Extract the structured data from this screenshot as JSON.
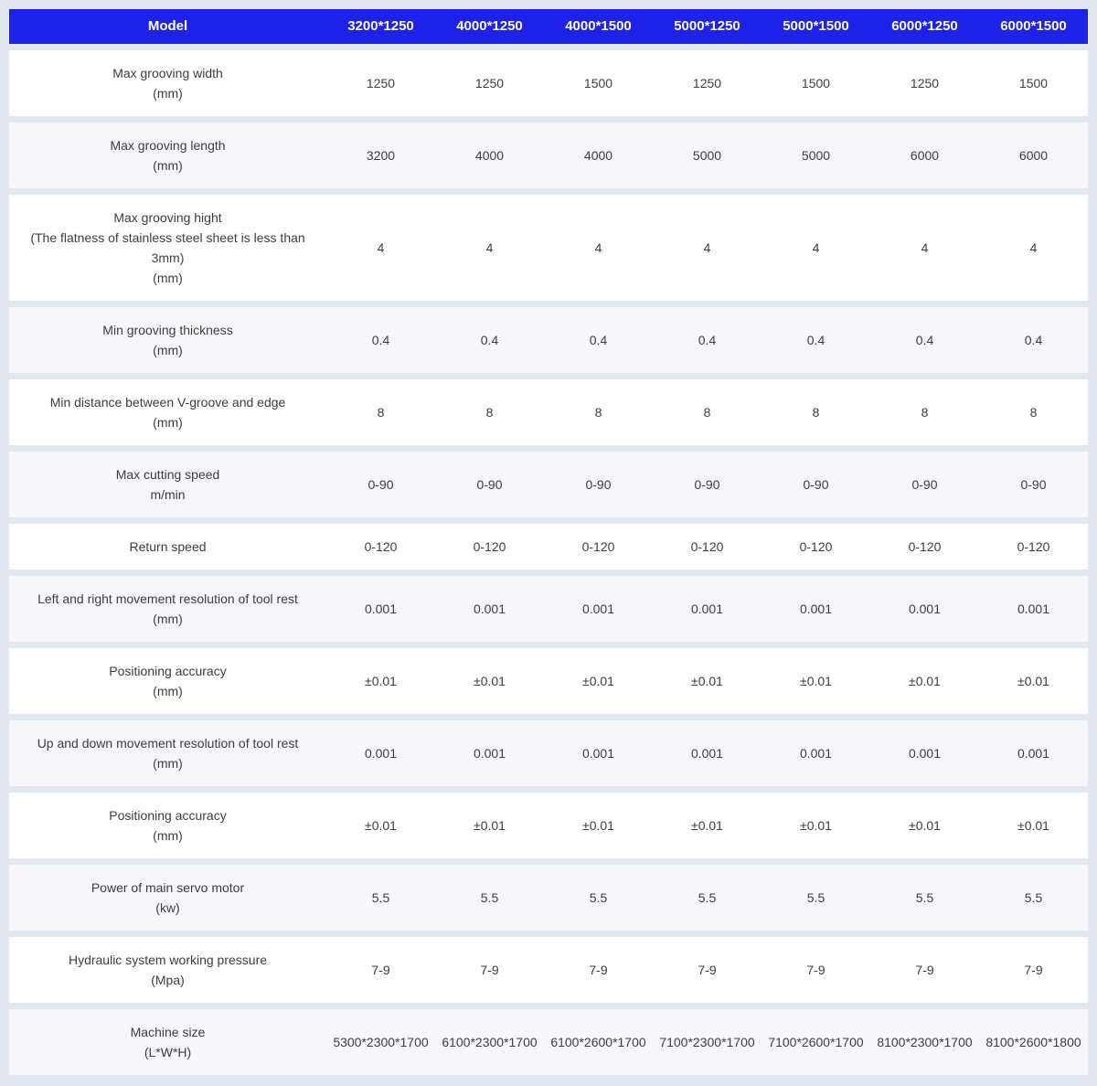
{
  "page": {
    "background_color": "#e2e8ef"
  },
  "table": {
    "header": {
      "model_label": "Model",
      "columns": [
        "3200*1250",
        "4000*1250",
        "4000*1500",
        "5000*1250",
        "5000*1500",
        "6000*1250",
        "6000*1500"
      ],
      "bg_color": "#1d22e8",
      "text_color": "#ffffff"
    },
    "rows": [
      {
        "label_lines": [
          "Max grooving width",
          "(mm)"
        ],
        "values": [
          "1250",
          "1250",
          "1500",
          "1250",
          "1500",
          "1250",
          "1500"
        ]
      },
      {
        "label_lines": [
          "Max grooving length",
          "(mm)"
        ],
        "values": [
          "3200",
          "4000",
          "4000",
          "5000",
          "5000",
          "6000",
          "6000"
        ]
      },
      {
        "label_lines": [
          "Max grooving hight",
          "(The flatness of stainless steel sheet is less than",
          "3mm)",
          "(mm)"
        ],
        "values": [
          "4",
          "4",
          "4",
          "4",
          "4",
          "4",
          "4"
        ]
      },
      {
        "label_lines": [
          "Min grooving thickness",
          "(mm)"
        ],
        "values": [
          "0.4",
          "0.4",
          "0.4",
          "0.4",
          "0.4",
          "0.4",
          "0.4"
        ]
      },
      {
        "label_lines": [
          "Min distance between V-groove and edge",
          "(mm)"
        ],
        "values": [
          "8",
          "8",
          "8",
          "8",
          "8",
          "8",
          "8"
        ]
      },
      {
        "label_lines": [
          "Max cutting speed",
          "m/min"
        ],
        "values": [
          "0-90",
          "0-90",
          "0-90",
          "0-90",
          "0-90",
          "0-90",
          "0-90"
        ]
      },
      {
        "label_lines": [
          "Return speed"
        ],
        "values": [
          "0-120",
          "0-120",
          "0-120",
          "0-120",
          "0-120",
          "0-120",
          "0-120"
        ]
      },
      {
        "label_lines": [
          "Left and right movement resolution of tool rest",
          "(mm)"
        ],
        "values": [
          "0.001",
          "0.001",
          "0.001",
          "0.001",
          "0.001",
          "0.001",
          "0.001"
        ]
      },
      {
        "label_lines": [
          "Positioning accuracy",
          "(mm)"
        ],
        "values": [
          "±0.01",
          "±0.01",
          "±0.01",
          "±0.01",
          "±0.01",
          "±0.01",
          "±0.01"
        ]
      },
      {
        "label_lines": [
          "Up and down movement resolution of tool rest",
          "(mm)"
        ],
        "values": [
          "0.001",
          "0.001",
          "0.001",
          "0.001",
          "0.001",
          "0.001",
          "0.001"
        ]
      },
      {
        "label_lines": [
          "Positioning accuracy",
          "(mm)"
        ],
        "values": [
          "±0.01",
          "±0.01",
          "±0.01",
          "±0.01",
          "±0.01",
          "±0.01",
          "±0.01"
        ]
      },
      {
        "label_lines": [
          "Power of main servo motor",
          "(kw)"
        ],
        "values": [
          "5.5",
          "5.5",
          "5.5",
          "5.5",
          "5.5",
          "5.5",
          "5.5"
        ]
      },
      {
        "label_lines": [
          "Hydraulic system working pressure",
          "(Mpa)"
        ],
        "values": [
          "7-9",
          "7-9",
          "7-9",
          "7-9",
          "7-9",
          "7-9",
          "7-9"
        ]
      },
      {
        "label_lines": [
          "Machine size",
          "(L*W*H)"
        ],
        "values": [
          "5300*2300*1700",
          "6100*2300*1700",
          "6100*2600*1700",
          "7100*2300*1700",
          "7100*2600*1700",
          "8100*2300*1700",
          "8100*2600*1800"
        ]
      }
    ]
  }
}
